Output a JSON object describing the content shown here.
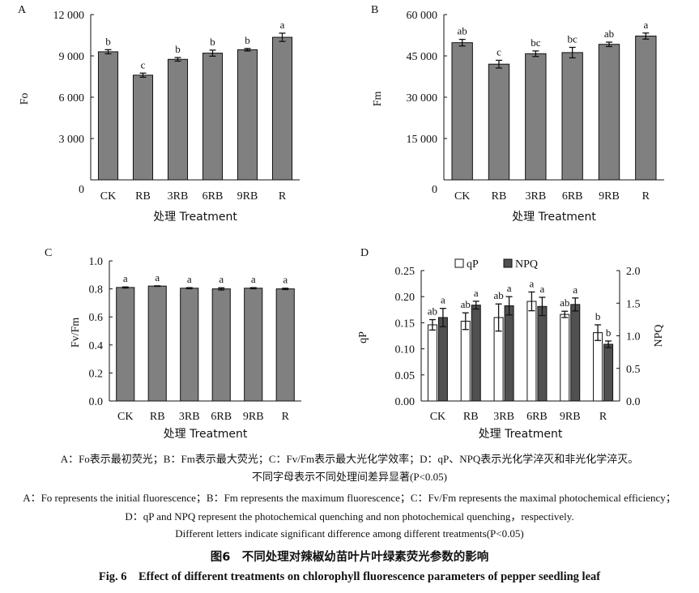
{
  "chart_data": [
    {
      "panel": "A",
      "type": "bar",
      "categories": [
        "CK",
        "RB",
        "3RB",
        "6RB",
        "9RB",
        "R"
      ],
      "values": [
        9300,
        7600,
        8750,
        9200,
        9450,
        10350
      ],
      "errors": [
        150,
        150,
        130,
        220,
        90,
        300
      ],
      "letters": [
        "b",
        "c",
        "b",
        "b",
        "b",
        "a"
      ],
      "ylabel": "Fo",
      "xlabel": "处理 Treatment",
      "ylim": [
        0,
        12000
      ],
      "yticks": [
        0,
        3000,
        6000,
        9000,
        12000
      ],
      "ytick_labels": [
        "0",
        "3 000",
        "6 000",
        "9 000",
        "12 000"
      ],
      "bar_color": "#808080"
    },
    {
      "panel": "B",
      "type": "bar",
      "categories": [
        "CK",
        "RB",
        "3RB",
        "6RB",
        "9RB",
        "R"
      ],
      "values": [
        49800,
        42000,
        45800,
        46200,
        49200,
        52200
      ],
      "errors": [
        1200,
        1400,
        1000,
        1900,
        800,
        1100
      ],
      "letters": [
        "ab",
        "c",
        "bc",
        "bc",
        "ab",
        "a"
      ],
      "ylabel": "Fm",
      "xlabel": "处理 Treatment",
      "ylim": [
        0,
        60000
      ],
      "yticks": [
        0,
        15000,
        30000,
        45000,
        60000
      ],
      "ytick_labels": [
        "0",
        "15 000",
        "30 000",
        "45 000",
        "60 000"
      ],
      "bar_color": "#808080"
    },
    {
      "panel": "C",
      "type": "bar",
      "categories": [
        "CK",
        "RB",
        "3RB",
        "6RB",
        "9RB",
        "R"
      ],
      "values": [
        0.81,
        0.82,
        0.805,
        0.8,
        0.805,
        0.8
      ],
      "errors": [
        0.004,
        0.002,
        0.004,
        0.008,
        0.004,
        0.005
      ],
      "letters": [
        "a",
        "a",
        "a",
        "a",
        "a",
        "a"
      ],
      "ylabel": "Fv/Fm",
      "xlabel": "处理 Treatment",
      "ylim": [
        0,
        1.0
      ],
      "yticks": [
        0,
        0.2,
        0.4,
        0.6,
        0.8,
        1.0
      ],
      "ytick_labels": [
        "0.0",
        "0.2",
        "0.4",
        "0.6",
        "0.8",
        "1.0"
      ],
      "bar_color": "#808080"
    },
    {
      "panel": "D",
      "type": "bar",
      "categories": [
        "CK",
        "RB",
        "3RB",
        "6RB",
        "9RB",
        "R"
      ],
      "series": [
        {
          "name": "qP",
          "axis": "left",
          "color": "#ffffff",
          "values": [
            0.146,
            0.153,
            0.16,
            0.191,
            0.166,
            0.131
          ],
          "errors": [
            0.01,
            0.016,
            0.026,
            0.018,
            0.006,
            0.015
          ],
          "letters": [
            "ab",
            "ab",
            "ab",
            "a",
            "ab",
            "b"
          ]
        },
        {
          "name": "NPQ",
          "axis": "right",
          "color": "#505050",
          "values": [
            1.28,
            1.47,
            1.46,
            1.45,
            1.48,
            0.87
          ],
          "errors": [
            0.14,
            0.06,
            0.14,
            0.14,
            0.1,
            0.05
          ],
          "letters": [
            "a",
            "a",
            "a",
            "a",
            "a",
            "b"
          ]
        }
      ],
      "ylabel": "qP",
      "y2label": "NPQ",
      "xlabel": "处理 Treatment",
      "ylim": [
        0,
        0.25
      ],
      "yticks": [
        0,
        0.05,
        0.1,
        0.15,
        0.2,
        0.25
      ],
      "ytick_labels": [
        "0.00",
        "0.05",
        "0.10",
        "0.15",
        "0.20",
        "0.25"
      ],
      "y2lim": [
        0,
        2.0
      ],
      "y2ticks": [
        0,
        0.5,
        1.0,
        1.5,
        2.0
      ],
      "y2tick_labels": [
        "0.0",
        "0.5",
        "1.0",
        "1.5",
        "2.0"
      ],
      "legend_position": "top"
    }
  ],
  "caption": {
    "cn_line1": "A：Fo表示最初荧光；B：Fm表示最大荧光；C：Fv/Fm表示最大光化学效率；D：qP、NPQ表示光化学淬灭和非光化学淬灭。",
    "cn_line2": "不同字母表示不同处理间差异显著(P<0.05)",
    "en_line1": "A：Fo represents the initial fluorescence；B：Fm represents the maximum fluorescence；C：Fv/Fm represents the maximal photochemical efficiency；",
    "en_line2": "D：qP and NPQ represent the photochemical quenching and non photochemical quenching，respectively.",
    "en_line3": "Different letters indicate significant difference among different treatments(P<0.05)",
    "title_cn": "图6　不同处理对辣椒幼苗叶片叶绿素荧光参数的影响",
    "title_en": "Fig. 6　Effect of different treatments on chlorophyll fluorescence parameters of pepper seedling leaf"
  }
}
